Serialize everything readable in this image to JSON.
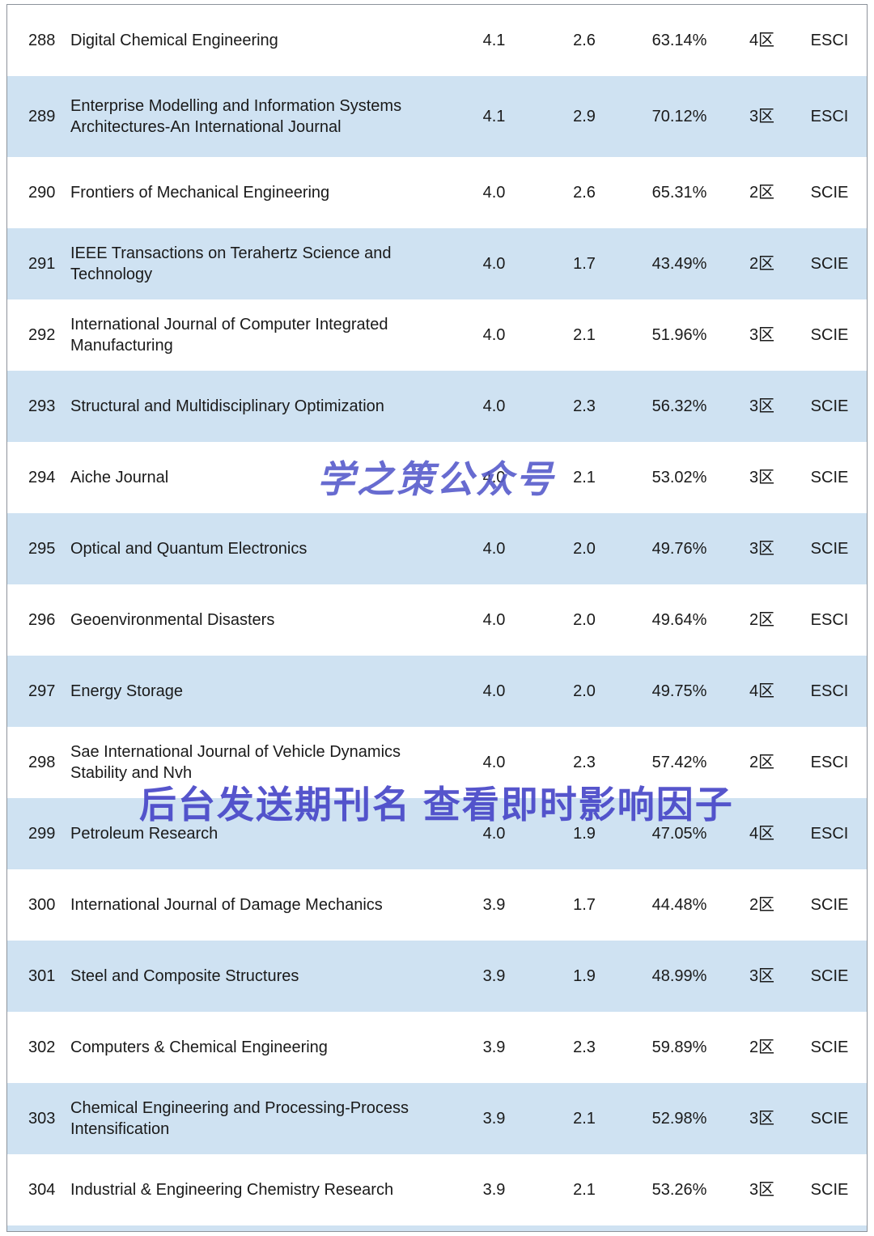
{
  "table": {
    "rows": [
      {
        "rank": "288",
        "journal": "Digital Chemical Engineering",
        "m1": "4.1",
        "m2": "2.6",
        "pct": "63.14%",
        "partition": "4区",
        "index": "ESCI"
      },
      {
        "rank": "289",
        "journal": "Enterprise Modelling and Information Systems Architectures-An International Journal",
        "m1": "4.1",
        "m2": "2.9",
        "pct": "70.12%",
        "partition": "3区",
        "index": "ESCI"
      },
      {
        "rank": "290",
        "journal": "Frontiers of Mechanical Engineering",
        "m1": "4.0",
        "m2": "2.6",
        "pct": "65.31%",
        "partition": "2区",
        "index": "SCIE"
      },
      {
        "rank": "291",
        "journal": "IEEE Transactions on Terahertz Science and Technology",
        "m1": "4.0",
        "m2": "1.7",
        "pct": "43.49%",
        "partition": "2区",
        "index": "SCIE"
      },
      {
        "rank": "292",
        "journal": "International Journal of Computer Integrated Manufacturing",
        "m1": "4.0",
        "m2": "2.1",
        "pct": "51.96%",
        "partition": "3区",
        "index": "SCIE"
      },
      {
        "rank": "293",
        "journal": "Structural and Multidisciplinary Optimization",
        "m1": "4.0",
        "m2": "2.3",
        "pct": "56.32%",
        "partition": "3区",
        "index": "SCIE"
      },
      {
        "rank": "294",
        "journal": "Aiche Journal",
        "m1": "4.0",
        "m2": "2.1",
        "pct": "53.02%",
        "partition": "3区",
        "index": "SCIE"
      },
      {
        "rank": "295",
        "journal": "Optical and Quantum Electronics",
        "m1": "4.0",
        "m2": "2.0",
        "pct": "49.76%",
        "partition": "3区",
        "index": "SCIE"
      },
      {
        "rank": "296",
        "journal": "Geoenvironmental Disasters",
        "m1": "4.0",
        "m2": "2.0",
        "pct": "49.64%",
        "partition": "2区",
        "index": "ESCI"
      },
      {
        "rank": "297",
        "journal": "Energy Storage",
        "m1": "4.0",
        "m2": "2.0",
        "pct": "49.75%",
        "partition": "4区",
        "index": "ESCI"
      },
      {
        "rank": "298",
        "journal": "Sae International Journal of Vehicle Dynamics Stability and Nvh",
        "m1": "4.0",
        "m2": "2.3",
        "pct": "57.42%",
        "partition": "2区",
        "index": "ESCI"
      },
      {
        "rank": "299",
        "journal": "Petroleum Research",
        "m1": "4.0",
        "m2": "1.9",
        "pct": "47.05%",
        "partition": "4区",
        "index": "ESCI"
      },
      {
        "rank": "300",
        "journal": "International Journal of Damage Mechanics",
        "m1": "3.9",
        "m2": "1.7",
        "pct": "44.48%",
        "partition": "2区",
        "index": "SCIE"
      },
      {
        "rank": "301",
        "journal": "Steel and Composite Structures",
        "m1": "3.9",
        "m2": "1.9",
        "pct": "48.99%",
        "partition": "3区",
        "index": "SCIE"
      },
      {
        "rank": "302",
        "journal": "Computers & Chemical Engineering",
        "m1": "3.9",
        "m2": "2.3",
        "pct": "59.89%",
        "partition": "2区",
        "index": "SCIE"
      },
      {
        "rank": "303",
        "journal": "Chemical Engineering and Processing-Process Intensification",
        "m1": "3.9",
        "m2": "2.1",
        "pct": "52.98%",
        "partition": "3区",
        "index": "SCIE"
      },
      {
        "rank": "304",
        "journal": "Industrial & Engineering Chemistry Research",
        "m1": "3.9",
        "m2": "2.1",
        "pct": "53.26%",
        "partition": "3区",
        "index": "SCIE"
      }
    ]
  },
  "watermarks": {
    "center": "学之策公众号",
    "banner": "后台发送期刊名 查看即时影响因子"
  },
  "colors": {
    "row_alt": "#cfe2f2",
    "watermark_blue": "#4f53c8",
    "text": "#1a1a1a"
  }
}
